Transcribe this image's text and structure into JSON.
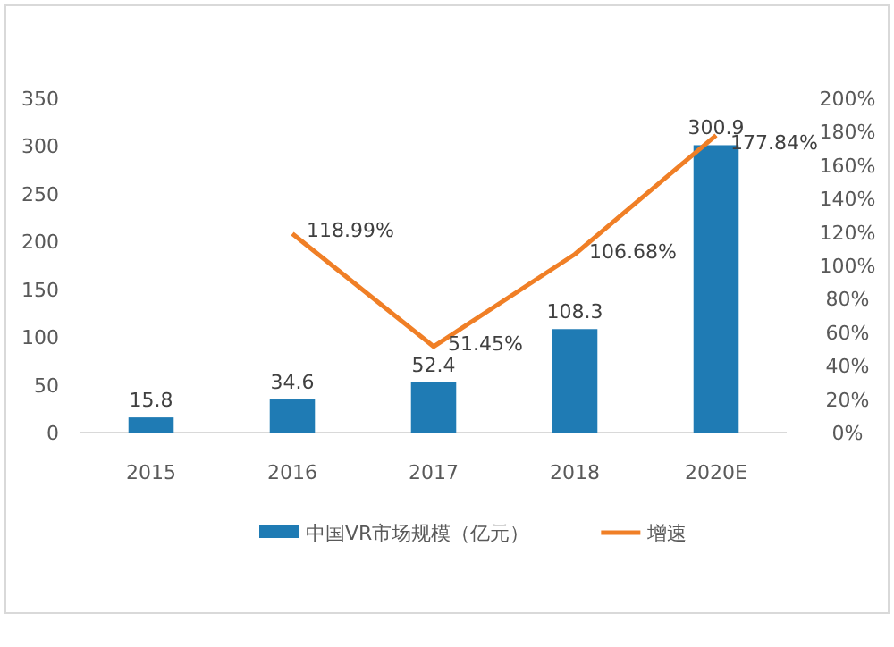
{
  "chart_data": {
    "type": "bar",
    "categories": [
      "2015",
      "2016",
      "2017",
      "2018",
      "2020E"
    ],
    "series": [
      {
        "name": "中国VR市场规模（亿元）",
        "color": "#1f7bb4",
        "values": [
          15.8,
          34.6,
          52.4,
          108.3,
          300.9
        ],
        "data_labels": true
      },
      {
        "name": "增速",
        "type": "line",
        "axis": "y2",
        "color": "#f07f26",
        "values": [
          null,
          118.99,
          51.45,
          106.68,
          177.84
        ],
        "value_labels": [
          null,
          "118.99%",
          "51.45%",
          "106.68%",
          "177.84%"
        ]
      }
    ],
    "ylim": [
      0,
      350
    ],
    "yticks": [
      0,
      50,
      100,
      150,
      200,
      250,
      300,
      350
    ],
    "y2lim": [
      0,
      200
    ],
    "y2ticks": [
      {
        "value": 0,
        "label": "0%"
      },
      {
        "value": 20,
        "label": "20%"
      },
      {
        "value": 40,
        "label": "40%"
      },
      {
        "value": 60,
        "label": "60%"
      },
      {
        "value": 80,
        "label": "80%"
      },
      {
        "value": 100,
        "label": "100%"
      },
      {
        "value": 120,
        "label": "120%"
      },
      {
        "value": 140,
        "label": "140%"
      },
      {
        "value": 160,
        "label": "160%"
      },
      {
        "value": 180,
        "label": "180%"
      },
      {
        "value": 200,
        "label": "200%"
      }
    ],
    "legend": "bottom",
    "grid": false
  }
}
